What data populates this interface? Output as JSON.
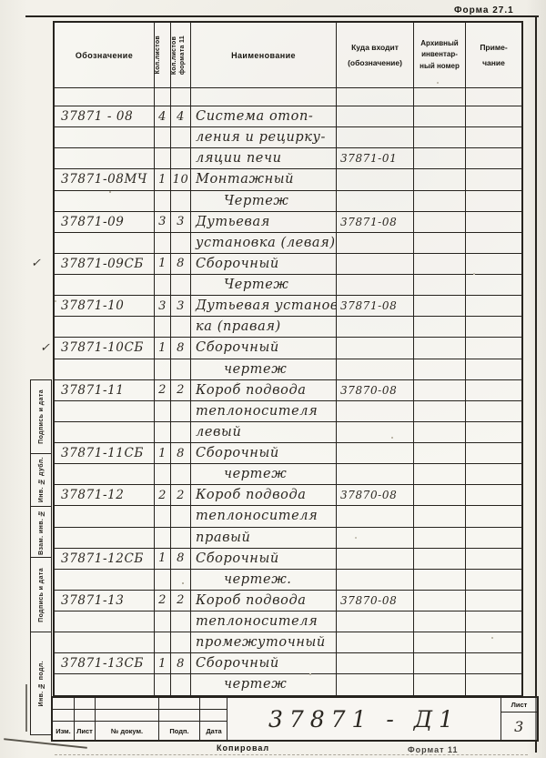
{
  "form_label": "Форма 27.1",
  "table": {
    "headers": {
      "designation": "Обозначение",
      "sheets": "Кол.листов",
      "sheets_f11": "Кол.листов\nформата 11",
      "name": "Наименование",
      "part_of": "Куда входит\n(обозначение)",
      "archive": "Архивный\nинвентар-\nный номер",
      "note": "Приме-\nчание"
    },
    "rows": [
      {
        "designation": "37871 - 08",
        "c1": "4",
        "c2": "4",
        "name": "Система отоп-",
        "part_of": ""
      },
      {
        "designation": "",
        "c1": "",
        "c2": "",
        "name": "ления и рецирку-",
        "part_of": ""
      },
      {
        "designation": "",
        "c1": "",
        "c2": "",
        "name": "ляции печи",
        "part_of": "37871-01"
      },
      {
        "designation": "37871-08МЧ",
        "c1": "1",
        "c2": "10",
        "name": "Монтажный",
        "part_of": ""
      },
      {
        "designation": "",
        "c1": "",
        "c2": "",
        "name": "Чертеж",
        "part_of": "",
        "indent": true
      },
      {
        "designation": "37871-09",
        "c1": "3",
        "c2": "3",
        "name": "Дутьевая",
        "part_of": "37871-08"
      },
      {
        "designation": "",
        "c1": "",
        "c2": "",
        "name": "установка (левая)",
        "part_of": ""
      },
      {
        "designation": "37871-09СБ",
        "c1": "1",
        "c2": "8",
        "name": "Сборочный",
        "part_of": "",
        "check": true
      },
      {
        "designation": "",
        "c1": "",
        "c2": "",
        "name": "Чертеж",
        "part_of": "",
        "indent": true
      },
      {
        "designation": "37871-10",
        "c1": "3",
        "c2": "3",
        "name": "Дутьевая установ-",
        "part_of": "37871-08"
      },
      {
        "designation": "",
        "c1": "",
        "c2": "",
        "name": "ка (правая)",
        "part_of": ""
      },
      {
        "designation": "37871-10СБ",
        "c1": "1",
        "c2": "8",
        "name": "Сборочный",
        "part_of": "",
        "check": true
      },
      {
        "designation": "",
        "c1": "",
        "c2": "",
        "name": "чертеж",
        "part_of": "",
        "indent": true
      },
      {
        "designation": "37871-11",
        "c1": "2",
        "c2": "2",
        "name": "Короб подвода",
        "part_of": "37870-08"
      },
      {
        "designation": "",
        "c1": "",
        "c2": "",
        "name": "теплоносителя",
        "part_of": ""
      },
      {
        "designation": "",
        "c1": "",
        "c2": "",
        "name": "левый",
        "part_of": ""
      },
      {
        "designation": "37871-11СБ",
        "c1": "1",
        "c2": "8",
        "name": "Сборочный",
        "part_of": ""
      },
      {
        "designation": "",
        "c1": "",
        "c2": "",
        "name": "чертеж",
        "part_of": "",
        "indent": true
      },
      {
        "designation": "37871-12",
        "c1": "2",
        "c2": "2",
        "name": "Короб подвода",
        "part_of": "37870-08"
      },
      {
        "designation": "",
        "c1": "",
        "c2": "",
        "name": "теплоносителя",
        "part_of": ""
      },
      {
        "designation": "",
        "c1": "",
        "c2": "",
        "name": "правый",
        "part_of": ""
      },
      {
        "designation": "37871-12СБ",
        "c1": "1",
        "c2": "8",
        "name": "Сборочный",
        "part_of": ""
      },
      {
        "designation": "",
        "c1": "",
        "c2": "",
        "name": "чертеж.",
        "part_of": "",
        "indent": true
      },
      {
        "designation": "37871-13",
        "c1": "2",
        "c2": "2",
        "name": "Короб подвода",
        "part_of": "37870-08"
      },
      {
        "designation": "",
        "c1": "",
        "c2": "",
        "name": "теплоносителя",
        "part_of": ""
      },
      {
        "designation": "",
        "c1": "",
        "c2": "",
        "name": "промежуточный",
        "part_of": ""
      },
      {
        "designation": "37871-13СБ",
        "c1": "1",
        "c2": "8",
        "name": "Сборочный",
        "part_of": ""
      },
      {
        "designation": "",
        "c1": "",
        "c2": "",
        "name": "чертеж",
        "part_of": "",
        "indent": true
      }
    ]
  },
  "check_glyph": "✓",
  "margin_labels": [
    "Подпись и дата",
    "Инв. № дубл.",
    "Взам. инв. №",
    "Подпись и дата",
    "Инв. № подл."
  ],
  "title_block": {
    "doc_number": "37871 - Д1",
    "sheet_label": "Лист",
    "sheet_number": "3",
    "columns": [
      "Изм.",
      "Лист",
      "№ докум.",
      "Подп.",
      "Дата"
    ],
    "footer_left": "Копировал",
    "footer_right": "Формат 11"
  },
  "colors": {
    "ink": "#26231e",
    "paper": "#f3f1ea",
    "handwriting": "#2b2721"
  }
}
